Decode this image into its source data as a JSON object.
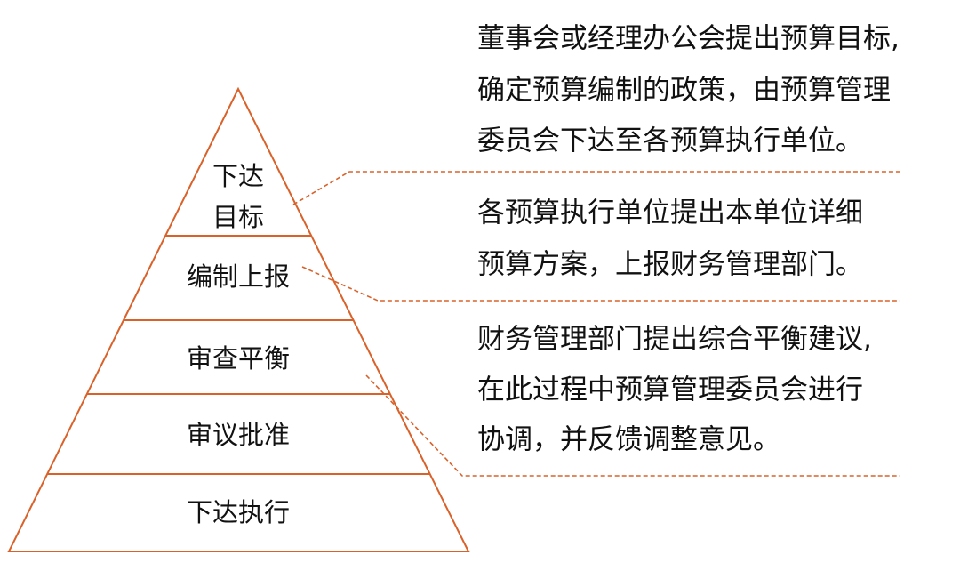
{
  "levels": [
    {
      "lines": [
        "下达",
        "目标"
      ]
    },
    {
      "lines": [
        "编制上报"
      ]
    },
    {
      "lines": [
        "审查平衡"
      ]
    },
    {
      "lines": [
        "审议批准"
      ]
    },
    {
      "lines": [
        "下达执行"
      ]
    }
  ],
  "descriptions": [
    {
      "lines": [
        "董事会或经理办公会提出预算目标,",
        "确定预算编制的政策，由预算管理",
        "委员会下达至各预算执行单位。"
      ]
    },
    {
      "lines": [
        "各预算执行单位提出本单位详细",
        "预算方案，上报财务管理部门。"
      ]
    },
    {
      "lines": [
        "财务管理部门提出综合平衡建议,",
        "在此过程中预算管理委员会进行",
        "协调，并反馈调整意见。"
      ]
    }
  ]
}
